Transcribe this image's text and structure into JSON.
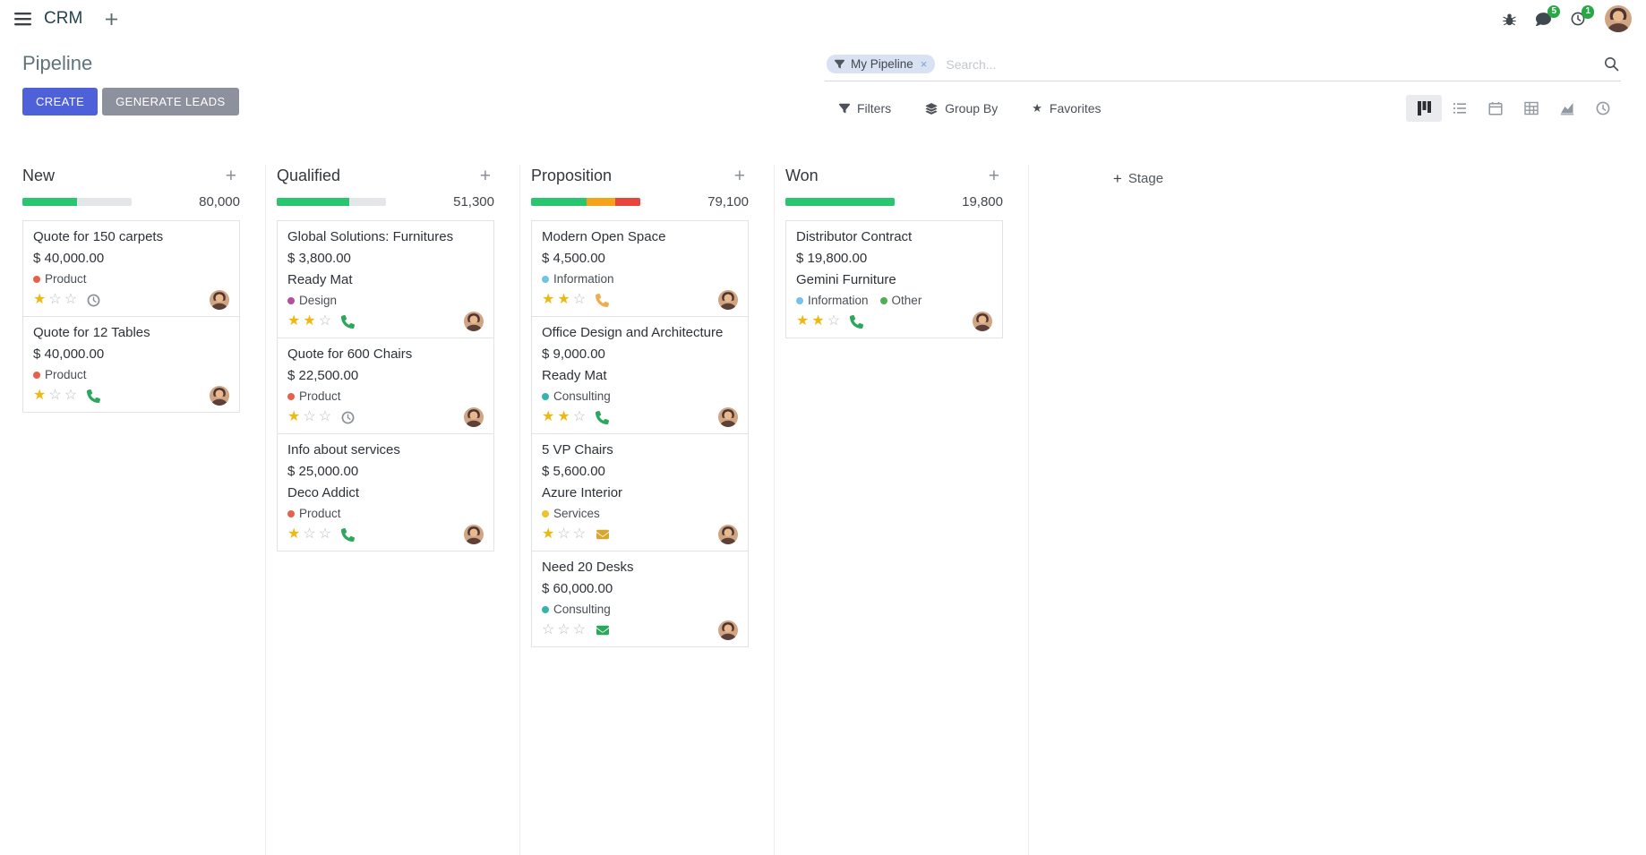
{
  "navbar": {
    "app_name": "CRM",
    "messages_badge": "5",
    "activities_badge": "1"
  },
  "control_panel": {
    "title": "Pipeline",
    "create_label": "CREATE",
    "generate_leads_label": "GENERATE LEADS",
    "filters_label": "Filters",
    "group_by_label": "Group By",
    "favorites_label": "Favorites",
    "search": {
      "facet_label": "My Pipeline",
      "placeholder": "Search...",
      "remove_facet_label": "×"
    },
    "view_switcher": {
      "active": "kanban",
      "views": [
        "kanban",
        "list",
        "calendar",
        "pivot",
        "graph",
        "activity"
      ]
    }
  },
  "icons": {
    "star_filled": "★",
    "star_empty": "☆",
    "plus": "+",
    "column_add": "+",
    "favorites_star": "★"
  },
  "colors": {
    "primary": "#4e61d9",
    "secondary_button": "#8d919d",
    "badge_green": "#28a745",
    "progress_green": "#28c76f",
    "progress_orange": "#f5a31b",
    "progress_red": "#e8453c",
    "star_gold": "#efb810"
  },
  "board": {
    "add_stage_label": "Stage",
    "columns": [
      {
        "name": "New",
        "counter": "80,000",
        "progress": [
          {
            "color": "#28c76f",
            "pct": 50
          }
        ],
        "cards": [
          {
            "title": "Quote for 150 carpets",
            "amount": "$ 40,000.00",
            "tags": [
              {
                "label": "Product",
                "color": "#e8604c"
              }
            ],
            "stars": 1,
            "activity": {
              "icon": "clock",
              "color": "#8a9097"
            }
          },
          {
            "title": "Quote for 12 Tables",
            "amount": "$ 40,000.00",
            "tags": [
              {
                "label": "Product",
                "color": "#e8604c"
              }
            ],
            "stars": 1,
            "activity": {
              "icon": "phone",
              "color": "#2aa85c"
            }
          }
        ]
      },
      {
        "name": "Qualified",
        "counter": "51,300",
        "progress": [
          {
            "color": "#28c76f",
            "pct": 66
          }
        ],
        "cards": [
          {
            "title": "Global Solutions: Furnitures",
            "amount": "$ 3,800.00",
            "partner": "Ready Mat",
            "tags": [
              {
                "label": "Design",
                "color": "#b3509e"
              }
            ],
            "stars": 2,
            "activity": {
              "icon": "phone",
              "color": "#2aa85c"
            }
          },
          {
            "title": "Quote for 600 Chairs",
            "amount": "$ 22,500.00",
            "tags": [
              {
                "label": "Product",
                "color": "#e8604c"
              }
            ],
            "stars": 1,
            "activity": {
              "icon": "clock",
              "color": "#8a9097"
            }
          },
          {
            "title": "Info about services",
            "amount": "$ 25,000.00",
            "partner": "Deco Addict",
            "tags": [
              {
                "label": "Product",
                "color": "#e8604c"
              }
            ],
            "stars": 1,
            "activity": {
              "icon": "phone",
              "color": "#2aa85c"
            }
          }
        ]
      },
      {
        "name": "Proposition",
        "counter": "79,100",
        "progress": [
          {
            "color": "#28c76f",
            "pct": 51
          },
          {
            "color": "#f5a31b",
            "pct": 26
          },
          {
            "color": "#e8453c",
            "pct": 23
          }
        ],
        "cards": [
          {
            "title": "Modern Open Space",
            "amount": "$ 4,500.00",
            "tags": [
              {
                "label": "Information",
                "color": "#6fc4e8"
              }
            ],
            "stars": 2,
            "activity": {
              "icon": "phone",
              "color": "#f0ad4e"
            }
          },
          {
            "title": "Office Design and Architecture",
            "amount": "$ 9,000.00",
            "partner": "Ready Mat",
            "tags": [
              {
                "label": "Consulting",
                "color": "#35b5aa"
              }
            ],
            "stars": 2,
            "activity": {
              "icon": "phone",
              "color": "#2aa85c"
            }
          },
          {
            "title": "5 VP Chairs",
            "amount": "$ 5,600.00",
            "partner": "Azure Interior",
            "tags": [
              {
                "label": "Services",
                "color": "#eec12f"
              }
            ],
            "stars": 1,
            "activity": {
              "icon": "envelope",
              "color": "#d9a62e"
            }
          },
          {
            "title": "Need 20 Desks",
            "amount": "$ 60,000.00",
            "tags": [
              {
                "label": "Consulting",
                "color": "#35b5aa"
              }
            ],
            "stars": 0,
            "activity": {
              "icon": "envelope",
              "color": "#2aa85c"
            }
          }
        ]
      },
      {
        "name": "Won",
        "counter": "19,800",
        "progress": [
          {
            "color": "#28c76f",
            "pct": 100
          }
        ],
        "cards": [
          {
            "title": "Distributor Contract",
            "amount": "$ 19,800.00",
            "partner": "Gemini Furniture",
            "tags": [
              {
                "label": "Information",
                "color": "#6fc4e8"
              },
              {
                "label": "Other",
                "color": "#4caf50"
              }
            ],
            "stars": 2,
            "activity": {
              "icon": "phone",
              "color": "#2aa85c"
            }
          }
        ]
      }
    ]
  }
}
